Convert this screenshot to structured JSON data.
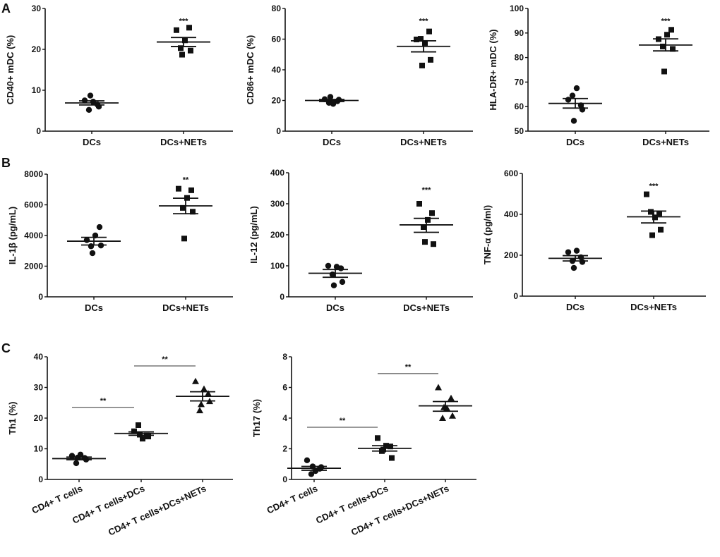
{
  "panel_labels": [
    "A",
    "B",
    "C"
  ],
  "chart_data": [
    {
      "type": "scatter",
      "panel": "A",
      "ylabel": "CD40+ mDC (%)",
      "ylim": [
        0,
        30
      ],
      "yticks": [
        0,
        10,
        20,
        30
      ],
      "categories": [
        "DCs",
        "DCs+NETs"
      ],
      "groups": [
        {
          "marker": "circle",
          "values": [
            7.5,
            6.5,
            7.2,
            5.2,
            6.0,
            8.7
          ],
          "mean": 6.9,
          "sem": [
            6.4,
            7.4
          ]
        },
        {
          "marker": "square",
          "values": [
            24.7,
            25.3,
            22.2,
            20.3,
            19.7,
            18.7
          ],
          "mean": 21.8,
          "sem": [
            20.7,
            22.9
          ]
        }
      ],
      "significance": [
        {
          "groups": [
            1
          ],
          "label": "***",
          "y": 27
        }
      ]
    },
    {
      "type": "scatter",
      "panel": "A",
      "ylabel": "CD86+ mDC (%)",
      "ylim": [
        0,
        80
      ],
      "yticks": [
        0,
        20,
        40,
        60,
        80
      ],
      "categories": [
        "DCs",
        "DCs+NETs"
      ],
      "groups": [
        {
          "marker": "circle",
          "values": [
            20.8,
            19.5,
            17.8,
            18.5,
            20.5,
            22.3
          ],
          "mean": 20,
          "sem": [
            19.3,
            20.7
          ]
        },
        {
          "marker": "square",
          "values": [
            59.8,
            65,
            57.5,
            60.2,
            46.5,
            42.8
          ],
          "mean": 55.3,
          "sem": [
            51.7,
            58.9
          ]
        }
      ],
      "significance": [
        {
          "groups": [
            1
          ],
          "label": "***",
          "y": 72
        }
      ]
    },
    {
      "type": "scatter",
      "panel": "A",
      "ylabel": "HLA-DR+ mDC (%)",
      "ylim": [
        50,
        100
      ],
      "yticks": [
        50,
        60,
        70,
        80,
        90,
        100
      ],
      "categories": [
        "DCs",
        "DCs+NETs"
      ],
      "groups": [
        {
          "marker": "circle",
          "values": [
            62.8,
            60.5,
            67.5,
            64.5,
            58.8,
            54.2
          ],
          "mean": 61.3,
          "sem": [
            59.4,
            63.3
          ]
        },
        {
          "marker": "square",
          "values": [
            87.5,
            91.3,
            89.3,
            84.5,
            83.5,
            74.3
          ],
          "mean": 85.1,
          "sem": [
            82.7,
            87.6
          ]
        }
      ],
      "significance": [
        {
          "groups": [
            1
          ],
          "label": "***",
          "y": 95
        }
      ]
    },
    {
      "type": "scatter",
      "panel": "B",
      "ylabel": "IL-1β (pg/mL)",
      "ylim": [
        0,
        8000
      ],
      "yticks": [
        0,
        2000,
        4000,
        6000,
        8000
      ],
      "categories": [
        "DCs",
        "DCs+NETs"
      ],
      "groups": [
        {
          "marker": "circle",
          "values": [
            3700,
            4550,
            4000,
            3300,
            3350,
            2850
          ],
          "mean": 3630,
          "sem": [
            3380,
            3880
          ]
        },
        {
          "marker": "square",
          "values": [
            7050,
            6950,
            6450,
            5800,
            5550,
            3800
          ],
          "mean": 5930,
          "sem": [
            5420,
            6430
          ]
        }
      ],
      "significance": [
        {
          "groups": [
            1
          ],
          "label": "**",
          "y": 7650
        }
      ]
    },
    {
      "type": "scatter",
      "panel": "B",
      "ylabel": "IL-12 (pg/mL)",
      "ylim": [
        0,
        400
      ],
      "yticks": [
        0,
        100,
        200,
        300,
        400
      ],
      "categories": [
        "DCs",
        "DCs+NETs"
      ],
      "groups": [
        {
          "marker": "circle",
          "values": [
            100,
            92,
            97,
            72,
            48,
            37
          ],
          "mean": 76,
          "sem": [
            63,
            88
          ]
        },
        {
          "marker": "square",
          "values": [
            300,
            270,
            248,
            225,
            170,
            177
          ],
          "mean": 232,
          "sem": [
            208,
            253
          ]
        }
      ],
      "significance": [
        {
          "groups": [
            1
          ],
          "label": "***",
          "y": 345
        }
      ]
    },
    {
      "type": "scatter",
      "panel": "B",
      "ylabel": "TNF-α (pg/ml)",
      "ylim": [
        0,
        600
      ],
      "yticks": [
        0,
        200,
        400,
        600
      ],
      "categories": [
        "DCs",
        "DCs+NETs"
      ],
      "groups": [
        {
          "marker": "circle",
          "values": [
            215,
            190,
            222,
            172,
            167,
            138
          ],
          "mean": 185,
          "sem": [
            172,
            198
          ]
        },
        {
          "marker": "square",
          "values": [
            498,
            405,
            385,
            412,
            325,
            298
          ],
          "mean": 388,
          "sem": [
            358,
            416
          ]
        }
      ],
      "significance": [
        {
          "groups": [
            1
          ],
          "label": "***",
          "y": 540
        }
      ]
    },
    {
      "type": "scatter",
      "panel": "C",
      "ylabel": "Th1 (%)",
      "ylim": [
        0,
        40
      ],
      "yticks": [
        0,
        10,
        20,
        30,
        40
      ],
      "categories": [
        "CD4+ T cells",
        "CD4+ T cells+DCs",
        "CD4+ T cells+DCs+NETs"
      ],
      "groups": [
        {
          "marker": "circle",
          "values": [
            7.7,
            7.0,
            8.1,
            5.3,
            6.5,
            7.1
          ],
          "mean": 6.8,
          "sem": [
            6.4,
            7.3
          ]
        },
        {
          "marker": "square",
          "values": [
            15.7,
            14.3,
            13.3,
            17.7,
            14.0,
            14.6
          ],
          "mean": 15,
          "sem": [
            14.4,
            15.5
          ]
        },
        {
          "marker": "triangle",
          "values": [
            32,
            28,
            29.5,
            22.5,
            25.5,
            24.5
          ],
          "mean": 27.1,
          "sem": [
            25.6,
            28.6
          ]
        }
      ],
      "significance": [
        {
          "groups": [
            0,
            1
          ],
          "label": "**",
          "y": 23.5
        },
        {
          "groups": [
            1,
            2
          ],
          "label": "**",
          "y": 37
        }
      ]
    },
    {
      "type": "scatter",
      "panel": "C",
      "ylabel": "Th17 (%)",
      "ylim": [
        0,
        8
      ],
      "yticks": [
        0,
        2,
        4,
        6,
        8
      ],
      "categories": [
        "CD4+ T cells",
        "CD4+ T cells+DCs",
        "CD4+ T cells+DCs+NETs"
      ],
      "groups": [
        {
          "marker": "circle",
          "values": [
            1.25,
            0.7,
            0.55,
            0.35,
            0.8,
            0.85
          ],
          "mean": 0.73,
          "sem": [
            0.6,
            0.85
          ]
        },
        {
          "marker": "square",
          "values": [
            2.7,
            2.15,
            2.2,
            1.85,
            1.4,
            1.95
          ],
          "mean": 2.03,
          "sem": [
            1.85,
            2.2
          ]
        },
        {
          "marker": "triangle",
          "values": [
            6.0,
            5.3,
            4.65,
            4.0,
            4.15,
            4.7
          ],
          "mean": 4.8,
          "sem": [
            4.45,
            5.08
          ]
        }
      ],
      "significance": [
        {
          "groups": [
            0,
            1
          ],
          "label": "**",
          "y": 3.4
        },
        {
          "groups": [
            1,
            2
          ],
          "label": "**",
          "y": 6.9
        }
      ]
    }
  ]
}
